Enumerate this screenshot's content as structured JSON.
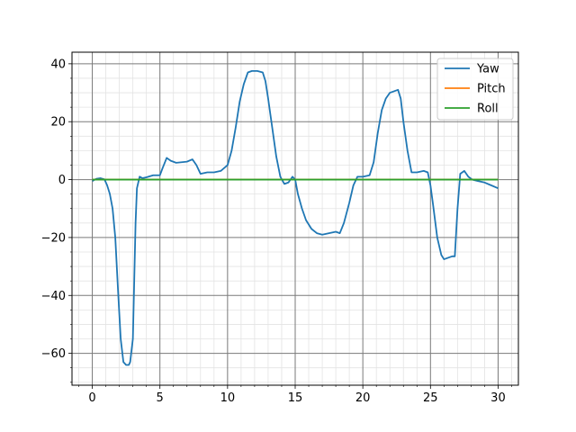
{
  "chart_data": {
    "type": "line",
    "title": "",
    "xlabel": "",
    "ylabel": "",
    "xlim": [
      -1.5,
      31.5
    ],
    "ylim": [
      -71,
      44
    ],
    "x_ticks": [
      0,
      5,
      10,
      15,
      20,
      25,
      30
    ],
    "x_tick_labels": [
      "0",
      "5",
      "10",
      "15",
      "20",
      "25",
      "30"
    ],
    "y_ticks": [
      -60,
      -40,
      -20,
      0,
      20,
      40
    ],
    "y_tick_labels": [
      "−60",
      "−40",
      "−20",
      "0",
      "20",
      "40"
    ],
    "grid": {
      "major": true,
      "minor": true
    },
    "legend": {
      "position": "top-right"
    },
    "series": [
      {
        "name": "Yaw",
        "color": "#1f77b4",
        "x": [
          0,
          0.3,
          0.6,
          0.9,
          1.1,
          1.3,
          1.5,
          1.7,
          1.9,
          2.1,
          2.3,
          2.5,
          2.7,
          2.8,
          3.0,
          3.1,
          3.2,
          3.3,
          3.5,
          3.7,
          4.0,
          4.5,
          5.0,
          5.2,
          5.5,
          5.8,
          6.2,
          6.6,
          7.0,
          7.4,
          7.7,
          8.0,
          8.5,
          9.0,
          9.5,
          10.0,
          10.3,
          10.6,
          10.9,
          11.2,
          11.5,
          11.8,
          12.2,
          12.6,
          12.8,
          13.0,
          13.3,
          13.6,
          13.9,
          14.2,
          14.5,
          14.8,
          15.0,
          15.2,
          15.5,
          15.8,
          16.2,
          16.6,
          17.0,
          17.5,
          18.0,
          18.3,
          18.6,
          19.0,
          19.3,
          19.6,
          20.0,
          20.5,
          20.8,
          21.1,
          21.4,
          21.7,
          22.0,
          22.3,
          22.6,
          22.8,
          23.0,
          23.3,
          23.6,
          24.0,
          24.5,
          24.8,
          25.0,
          25.2,
          25.5,
          25.8,
          26.0,
          26.3,
          26.6,
          26.8,
          27.0,
          27.2,
          27.5,
          27.8,
          28.1,
          28.5,
          29.0,
          29.5,
          30.0
        ],
        "y": [
          -0.5,
          0.3,
          0.5,
          0.1,
          -2,
          -5,
          -10,
          -20,
          -38,
          -55,
          -63,
          -64,
          -64,
          -63,
          -55,
          -35,
          -15,
          -3,
          1,
          0.5,
          0.8,
          1.5,
          1.5,
          4,
          7.5,
          6.5,
          5.8,
          6,
          6.2,
          7,
          5,
          2,
          2.5,
          2.5,
          3,
          5,
          10,
          18,
          27,
          33,
          37,
          37.5,
          37.5,
          37,
          34,
          28,
          18,
          8,
          1,
          -1.5,
          -1,
          1,
          0,
          -5,
          -10,
          -14,
          -17,
          -18.5,
          -19,
          -18.5,
          -18,
          -18.5,
          -15,
          -8,
          -2,
          1,
          1,
          1.5,
          6,
          16,
          24,
          28,
          30,
          30.5,
          31,
          28,
          20,
          10,
          2.5,
          2.5,
          3,
          2.5,
          -2,
          -9,
          -20,
          -26,
          -27.5,
          -27,
          -26.5,
          -26.5,
          -10,
          2,
          3,
          1,
          0,
          -0.5,
          -1,
          -2,
          -3
        ]
      },
      {
        "name": "Pitch",
        "color": "#ff7f0e",
        "x": [
          0,
          30
        ],
        "y": [
          0,
          0
        ]
      },
      {
        "name": "Roll",
        "color": "#2ca02c",
        "x": [
          0,
          30
        ],
        "y": [
          0,
          0
        ]
      }
    ]
  }
}
